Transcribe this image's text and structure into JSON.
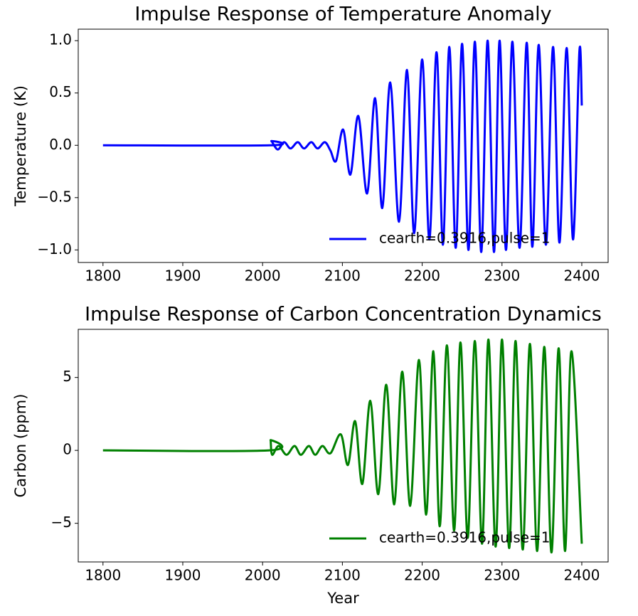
{
  "chart_data": [
    {
      "type": "line",
      "title": "Impulse Response of Temperature Anomaly",
      "ylabel": "Temperature (K)",
      "x": [
        1800,
        2010,
        2011,
        2019,
        2027,
        2035,
        2044,
        2052,
        2061,
        2069,
        2078,
        2085,
        2092,
        2101,
        2110,
        2120,
        2131,
        2141,
        2150,
        2160,
        2171,
        2181,
        2190,
        2200,
        2209,
        2218,
        2226,
        2234,
        2242,
        2250,
        2258,
        2266,
        2274,
        2282,
        2290,
        2297,
        2305,
        2313,
        2322,
        2331,
        2338,
        2346,
        2355,
        2364,
        2372,
        2381,
        2389,
        2397,
        2400
      ],
      "series": [
        {
          "name": "cearth=0.3916,pulse=1",
          "color": "#0000ff",
          "values": [
            0,
            0,
            0.04,
            -0.04,
            0.03,
            -0.03,
            0.03,
            -0.03,
            0.03,
            -0.03,
            0.03,
            -0.05,
            -0.15,
            0.15,
            -0.28,
            0.28,
            -0.46,
            0.45,
            -0.6,
            0.6,
            -0.73,
            0.72,
            -0.84,
            0.82,
            -0.9,
            0.89,
            -0.95,
            0.94,
            -0.98,
            0.97,
            -1.0,
            0.99,
            -1.02,
            1.0,
            -1.02,
            1.0,
            -1.0,
            0.99,
            -0.98,
            0.98,
            -0.97,
            0.96,
            -0.95,
            0.94,
            -0.93,
            0.93,
            -0.9,
            0.9,
            0.38
          ]
        }
      ],
      "xlim": [
        1769,
        2433
      ],
      "xticks": [
        1800,
        1900,
        2000,
        2100,
        2200,
        2300,
        2400
      ],
      "ylim": [
        -1.12,
        1.11
      ],
      "yticks": [
        {
          "value": -1.0,
          "label": "−1.0"
        },
        {
          "value": -0.5,
          "label": "−0.5"
        },
        {
          "value": 0.0,
          "label": "0.0"
        },
        {
          "value": 0.5,
          "label": "0.5"
        },
        {
          "value": 1.0,
          "label": "1.0"
        }
      ],
      "legend": "lower right"
    },
    {
      "type": "line",
      "title": "Impulse Response of Carbon Concentration Dynamics",
      "xlabel": "Year",
      "ylabel": "Carbon (ppm)",
      "x": [
        1800,
        2009,
        2010,
        2012,
        2020,
        2030,
        2040,
        2048,
        2058,
        2066,
        2075,
        2085,
        2098,
        2107,
        2116,
        2125,
        2135,
        2145,
        2155,
        2165,
        2175,
        2185,
        2196,
        2205,
        2214,
        2222,
        2231,
        2240,
        2248,
        2257,
        2266,
        2275,
        2283,
        2292,
        2300,
        2309,
        2317,
        2326,
        2335,
        2344,
        2353,
        2362,
        2371,
        2379,
        2387,
        2400
      ],
      "series": [
        {
          "name": "cearth=0.3916,pulse=1",
          "color": "#008000",
          "values": [
            0,
            0,
            0.7,
            -0.3,
            0.3,
            -0.3,
            0.3,
            -0.3,
            0.3,
            -0.3,
            0.3,
            -0.2,
            1.1,
            -1.0,
            2.0,
            -2.3,
            3.4,
            -3.0,
            4.5,
            -3.7,
            5.4,
            -3.8,
            6.2,
            -4.4,
            6.8,
            -5.2,
            7.2,
            -5.5,
            7.4,
            -6.0,
            7.5,
            -6.4,
            7.6,
            -6.6,
            7.6,
            -6.7,
            7.5,
            -6.8,
            7.3,
            -6.9,
            7.1,
            -7.0,
            7.0,
            -6.9,
            6.8,
            -6.4
          ]
        }
      ],
      "xlim": [
        1769,
        2433
      ],
      "xticks": [
        1800,
        1900,
        2000,
        2100,
        2200,
        2300,
        2400
      ],
      "ylim": [
        -7.65,
        8.3
      ],
      "yticks": [
        {
          "value": -5,
          "label": "−5"
        },
        0,
        5
      ],
      "legend": "lower right"
    }
  ]
}
